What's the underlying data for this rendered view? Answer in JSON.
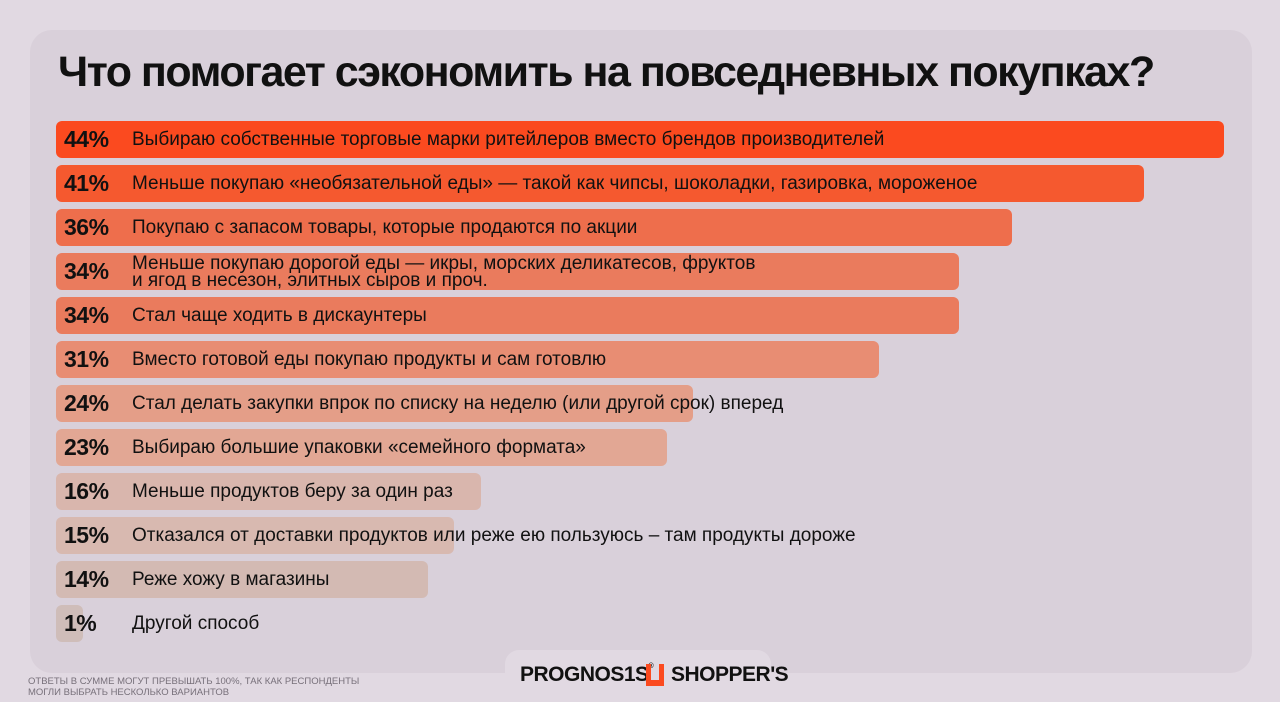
{
  "title": "Что помогает сэкономить на повседневных покупках?",
  "chart_data": {
    "type": "bar",
    "orientation": "horizontal",
    "title": "Что помогает сэкономить на повседневных покупках?",
    "unit": "%",
    "xlim": [
      0,
      44
    ],
    "categories": [
      "Выбираю собственные торговые марки ритейлеров вместо брендов производителей",
      "Меньше покупаю «необязательной еды» — такой как чипсы, шоколадки, газировка, мороженое",
      "Покупаю с запасом товары, которые продаются по акции",
      "Меньше покупаю дорогой еды — икры, морских деликатесов, фруктов\nи ягод в несезон, элитных сыров и проч.",
      "Стал чаще ходить в дискаунтеры",
      "Вместо готовой еды покупаю продукты и сам готовлю",
      "Стал делать закупки впрок по списку на неделю (или другой срок) вперед",
      "Выбираю большие упаковки «семейного формата»",
      "Меньше продуктов беру за один раз",
      "Отказался от доставки продуктов или реже ею пользуюсь – там продукты дороже",
      "Реже хожу в магазины",
      "Другой способ"
    ],
    "values": [
      44,
      41,
      36,
      34,
      34,
      31,
      24,
      23,
      16,
      15,
      14,
      1
    ],
    "value_labels": [
      "44%",
      "41%",
      "36%",
      "34%",
      "34%",
      "31%",
      "24%",
      "23%",
      "16%",
      "15%",
      "14%",
      "1%"
    ],
    "bar_colors": [
      "#fb4a1f",
      "#f5592f",
      "#ee6e4c",
      "#ea7b5d",
      "#ea7b5d",
      "#e88d73",
      "#e49e88",
      "#e2a794",
      "#d9b6ad",
      "#d8b9b0",
      "#d3bab3",
      "#cfbdb9"
    ]
  },
  "footnote": "Ответы в сумме могут превышать 100%, так как респонденты\nмогли выбрать несколько вариантов",
  "logos": {
    "prognosis": "PROGNOS1S",
    "prognosis_mark": "®",
    "shoppers": "SHOPPER'S",
    "shoppers_icon": "shoppers-bracket-icon",
    "shoppers_color": "#fb4a1f"
  }
}
